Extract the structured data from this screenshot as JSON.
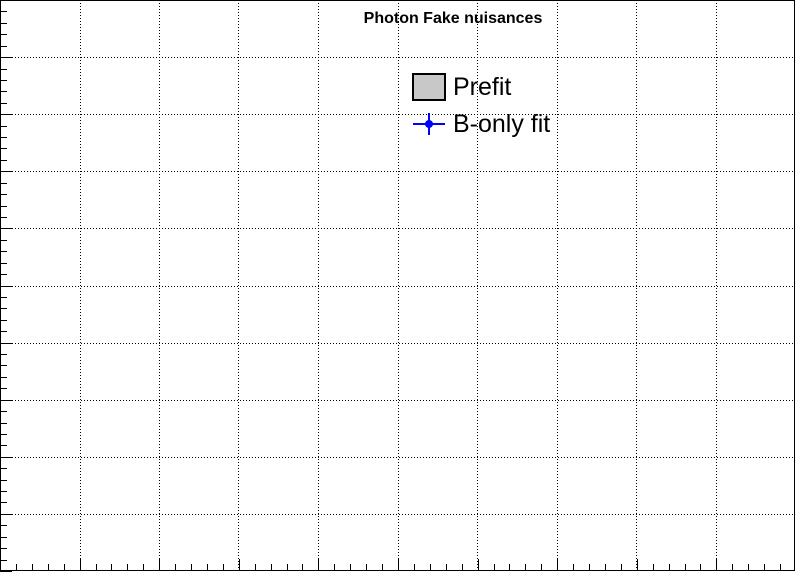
{
  "chart_data": {
    "type": "scatter",
    "title": "Photon Fake nuisances",
    "xlabel": "",
    "ylabel": "",
    "grid": true,
    "legend_placement": "top-center",
    "series": [
      {
        "name": "Prefit",
        "values": [],
        "style": "box",
        "color": "#c8c8c8",
        "edge_color": "#000000"
      },
      {
        "name": "B-only fit",
        "values": [],
        "style": "marker-with-errors",
        "color": "#0000ff"
      }
    ]
  }
}
